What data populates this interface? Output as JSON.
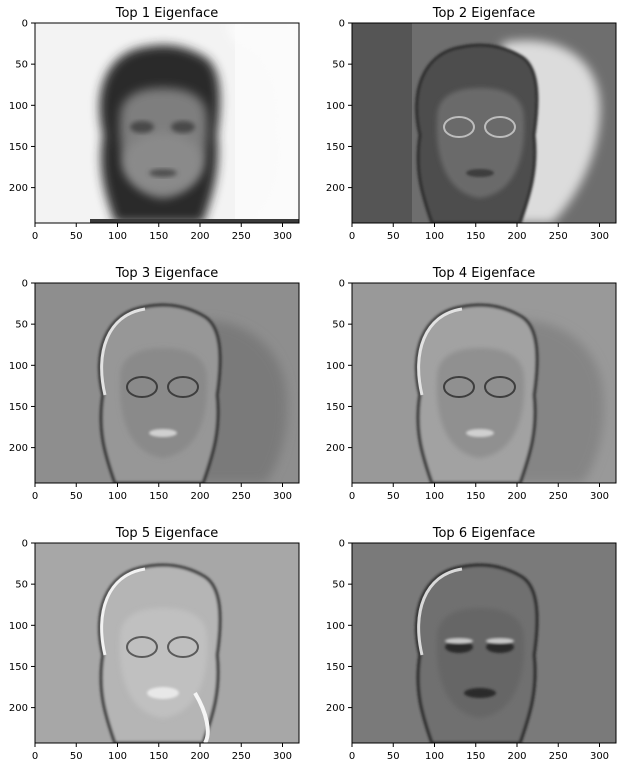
{
  "figure": {
    "background": "#ffffff",
    "panels": [
      {
        "title": "Top 1 Eigenface",
        "style": "mean"
      },
      {
        "title": "Top 2 Eigenface",
        "style": "split"
      },
      {
        "title": "Top 3 Eigenface",
        "style": "shadow"
      },
      {
        "title": "Top 4 Eigenface",
        "style": "shadow2"
      },
      {
        "title": "Top 5 Eigenface",
        "style": "light"
      },
      {
        "title": "Top 6 Eigenface",
        "style": "dark"
      }
    ],
    "x_ticks": [
      "0",
      "50",
      "100",
      "150",
      "200",
      "250",
      "300"
    ],
    "y_ticks": [
      "0",
      "50",
      "100",
      "150",
      "200"
    ],
    "x_tick_values": [
      0,
      50,
      100,
      150,
      200,
      250,
      300
    ],
    "y_tick_values": [
      0,
      50,
      100,
      150,
      200
    ],
    "x_range": [
      0,
      320
    ],
    "y_range": [
      0,
      243
    ]
  }
}
